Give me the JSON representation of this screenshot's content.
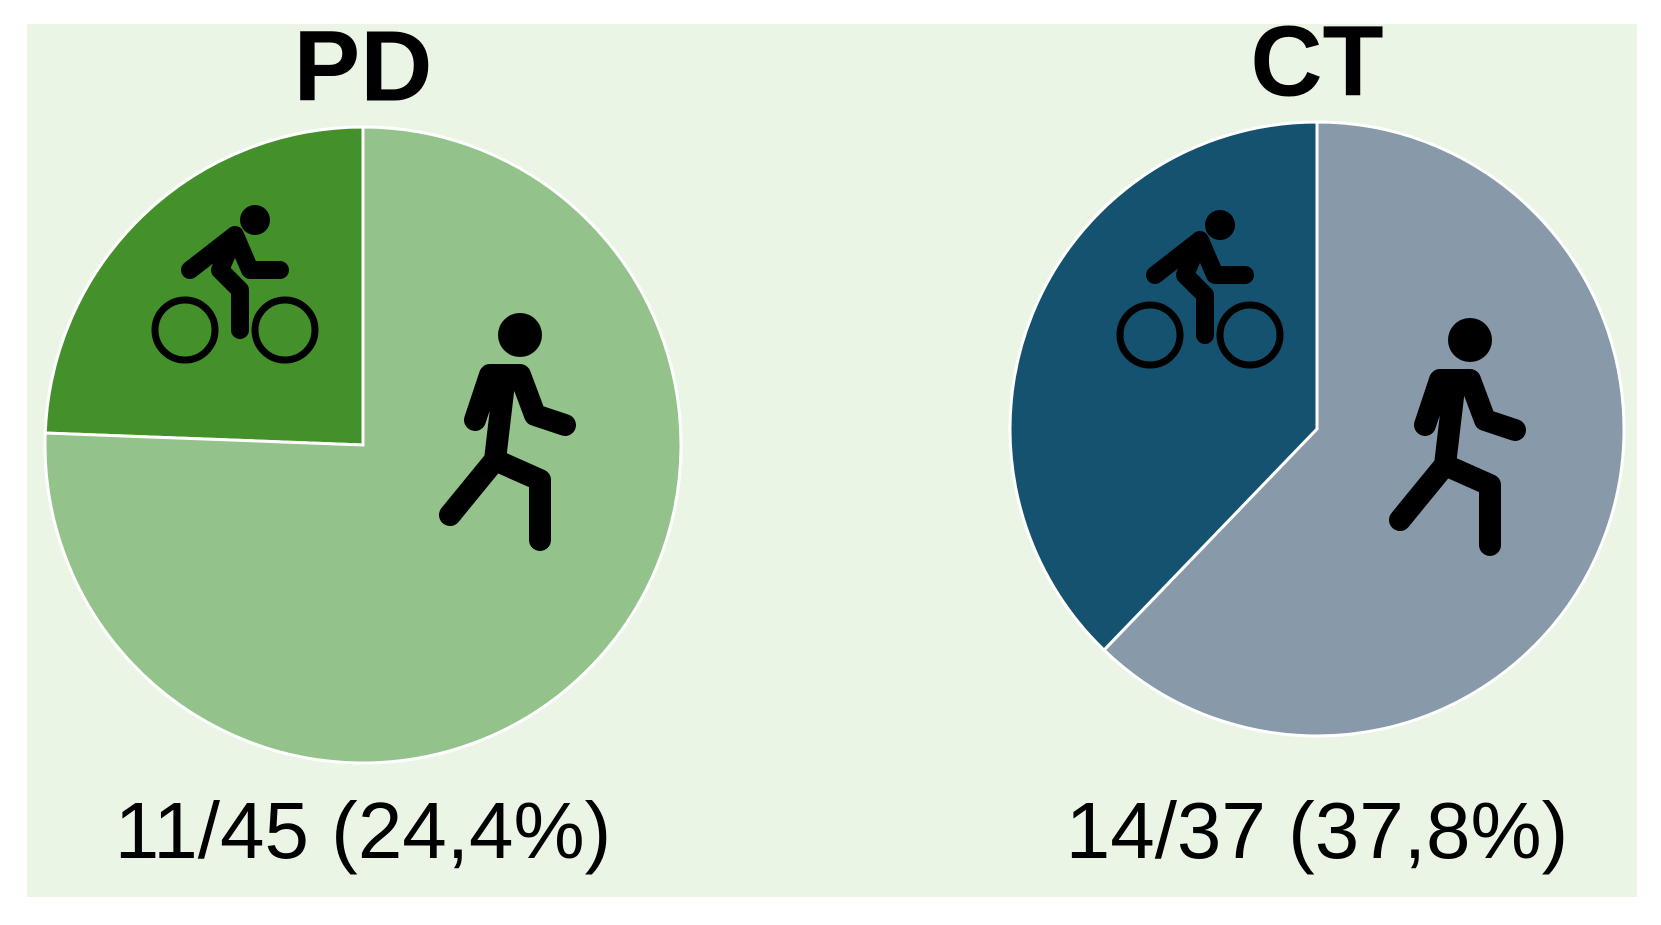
{
  "chart_data": [
    {
      "type": "pie",
      "title": "PD",
      "values": [
        24.4,
        75.6
      ],
      "colors": [
        "#44902a",
        "#93c28a"
      ],
      "caption": "11/45 (24,4%)"
    },
    {
      "type": "pie",
      "title": "CT",
      "values": [
        37.8,
        62.2
      ],
      "colors": [
        "#14526f",
        "#8899aa"
      ],
      "caption": "14/37 (37,8%)"
    }
  ]
}
